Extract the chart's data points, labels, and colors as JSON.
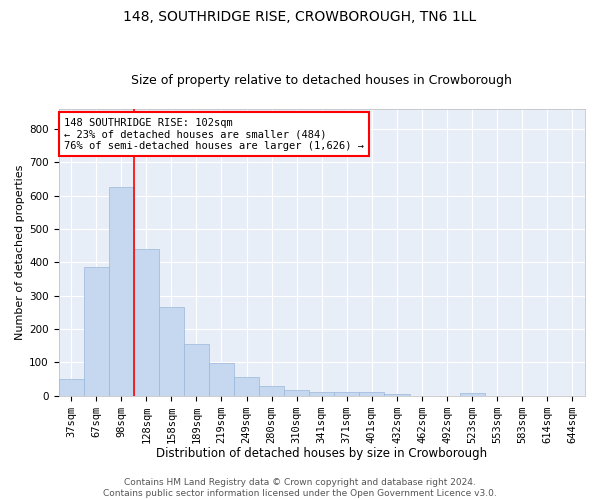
{
  "title": "148, SOUTHRIDGE RISE, CROWBOROUGH, TN6 1LL",
  "subtitle": "Size of property relative to detached houses in Crowborough",
  "xlabel": "Distribution of detached houses by size in Crowborough",
  "ylabel": "Number of detached properties",
  "categories": [
    "37sqm",
    "67sqm",
    "98sqm",
    "128sqm",
    "158sqm",
    "189sqm",
    "219sqm",
    "249sqm",
    "280sqm",
    "310sqm",
    "341sqm",
    "371sqm",
    "401sqm",
    "432sqm",
    "462sqm",
    "492sqm",
    "523sqm",
    "553sqm",
    "583sqm",
    "614sqm",
    "644sqm"
  ],
  "values": [
    50,
    385,
    625,
    440,
    265,
    155,
    97,
    55,
    28,
    18,
    10,
    12,
    12,
    5,
    0,
    0,
    8,
    0,
    0,
    0,
    0
  ],
  "bar_color": "#c5d8f0",
  "bar_edge_color": "#9ab8d8",
  "red_line_index": 2,
  "annotation_line1": "148 SOUTHRIDGE RISE: 102sqm",
  "annotation_line2": "← 23% of detached houses are smaller (484)",
  "annotation_line3": "76% of semi-detached houses are larger (1,626) →",
  "ylim": [
    0,
    860
  ],
  "yticks": [
    0,
    100,
    200,
    300,
    400,
    500,
    600,
    700,
    800
  ],
  "background_color": "#e8eef8",
  "grid_color": "#ffffff",
  "footer_line1": "Contains HM Land Registry data © Crown copyright and database right 2024.",
  "footer_line2": "Contains public sector information licensed under the Open Government Licence v3.0.",
  "title_fontsize": 10,
  "subtitle_fontsize": 9,
  "xlabel_fontsize": 8.5,
  "ylabel_fontsize": 8,
  "tick_fontsize": 7.5,
  "annotation_fontsize": 7.5,
  "footer_fontsize": 6.5
}
